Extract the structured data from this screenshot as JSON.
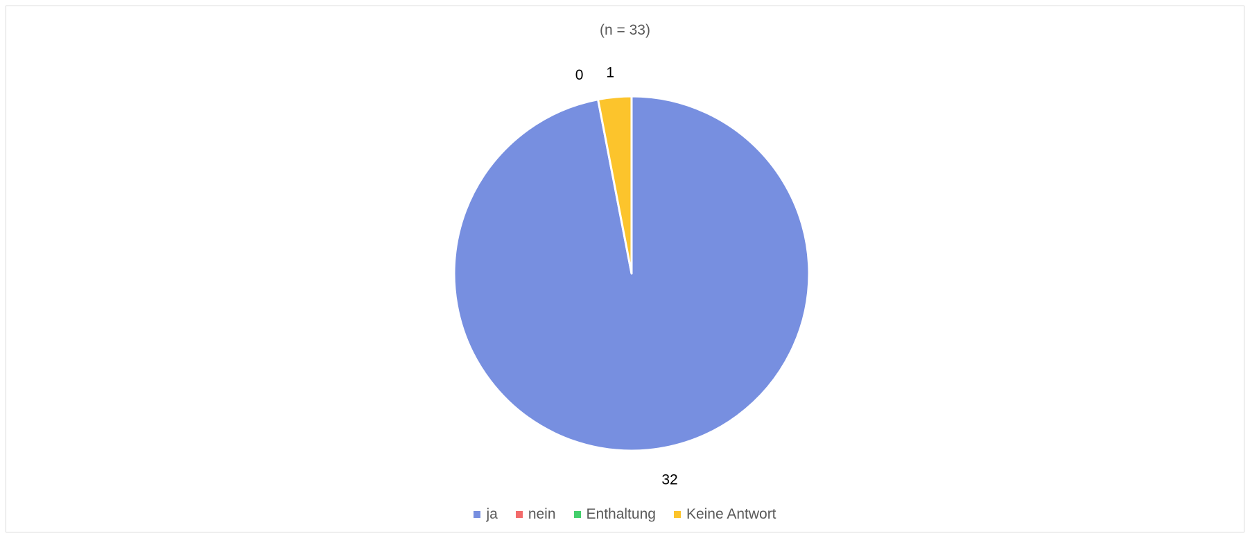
{
  "chart_data": {
    "type": "pie",
    "subtitle": "(n = 33)",
    "categories": [
      "ja",
      "nein",
      "Enthaltung",
      "Keine Antwort"
    ],
    "values": [
      32,
      0,
      0,
      1
    ],
    "data_labels": [
      "32",
      "0",
      "0",
      "1"
    ],
    "colors": [
      "#778fe0",
      "#f36b6b",
      "#44cf6c",
      "#fcc42c"
    ],
    "legend_position": "bottom",
    "start_angle": "top",
    "direction": "clockwise"
  }
}
